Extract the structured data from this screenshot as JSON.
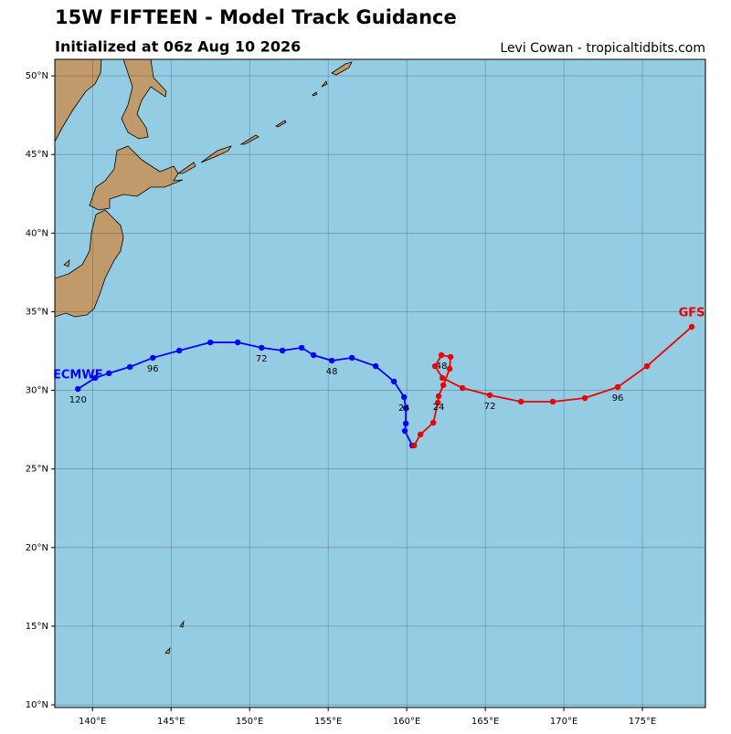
{
  "chart_data": {
    "type": "line",
    "title": "15W FIFTEEN - Model Track Guidance",
    "subtitle": "Initialized at 06z Aug 10 2026",
    "credit": "Levi Cowan - tropicaltidbits.com",
    "xlim": [
      137.6,
      179.01
    ],
    "ylim": [
      9.83,
      51.05
    ],
    "xticks": [
      {
        "value": 140,
        "label": "140°E"
      },
      {
        "value": 145,
        "label": "145°E"
      },
      {
        "value": 150,
        "label": "150°E"
      },
      {
        "value": 155,
        "label": "155°E"
      },
      {
        "value": 160,
        "label": "160°E"
      },
      {
        "value": 165,
        "label": "165°E"
      },
      {
        "value": 170,
        "label": "170°E"
      },
      {
        "value": 175,
        "label": "175°E"
      }
    ],
    "yticks": [
      {
        "value": 10,
        "label": "10°N"
      },
      {
        "value": 15,
        "label": "15°N"
      },
      {
        "value": 20,
        "label": "20°N"
      },
      {
        "value": 25,
        "label": "25°N"
      },
      {
        "value": 30,
        "label": "30°N"
      },
      {
        "value": 35,
        "label": "35°N"
      },
      {
        "value": 40,
        "label": "40°N"
      },
      {
        "value": 45,
        "label": "45°N"
      },
      {
        "value": 50,
        "label": "50°N"
      }
    ],
    "grid": true,
    "series": [
      {
        "name": "ECMWF",
        "color": "#0000ff",
        "x": [
          160.35,
          159.88,
          159.94,
          159.94,
          159.83,
          159.19,
          158.02,
          156.51,
          155.23,
          154.07,
          153.31,
          152.09,
          150.76,
          149.24,
          147.5,
          145.52,
          143.84,
          142.38,
          141.05,
          140.17,
          139.07
        ],
        "values": [
          26.49,
          27.42,
          27.89,
          28.87,
          29.57,
          30.56,
          31.54,
          32.07,
          31.89,
          32.24,
          32.71,
          32.53,
          32.71,
          33.05,
          33.05,
          32.53,
          32.07,
          31.49,
          31.09,
          30.79,
          30.09
        ],
        "point_labels": [
          null,
          null,
          null,
          null,
          "24",
          null,
          null,
          null,
          "48",
          null,
          null,
          null,
          "72",
          null,
          null,
          null,
          "96",
          null,
          null,
          null,
          "120"
        ]
      },
      {
        "name": "GFS",
        "color": "#ee0000",
        "x": [
          160.47,
          160.87,
          161.69,
          161.98,
          162.03,
          162.33,
          162.73,
          162.79,
          162.21,
          161.8,
          162.27,
          163.55,
          165.29,
          167.27,
          169.3,
          171.34,
          173.43,
          175.29,
          178.14
        ],
        "values": [
          26.49,
          27.19,
          27.94,
          29.22,
          29.63,
          30.33,
          31.37,
          32.13,
          32.24,
          31.54,
          30.79,
          30.15,
          29.69,
          29.28,
          29.28,
          29.51,
          30.21,
          31.54,
          34.04
        ],
        "point_labels": [
          null,
          null,
          null,
          null,
          "24",
          null,
          null,
          null,
          "48",
          null,
          null,
          null,
          "72",
          null,
          null,
          null,
          "96",
          null,
          null
        ]
      }
    ]
  }
}
